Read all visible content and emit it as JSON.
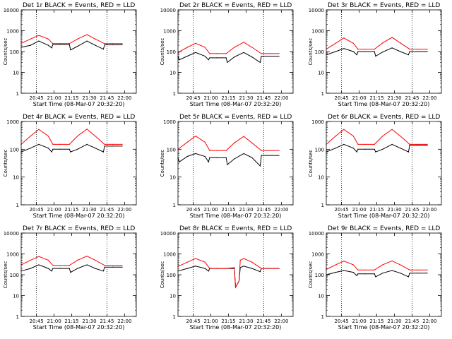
{
  "figure": {
    "colors": {
      "events": "#000000",
      "lld": "#ff0000",
      "axis": "#000000"
    }
  },
  "chart_data": [
    {
      "type": "line",
      "title": "Det 1r BLACK = Events, RED = LLD",
      "xlabel": "Start Time (08-Mar-07 20:32:20)",
      "ylabel": "Counts/sec",
      "yscale": "log",
      "ylim": [
        1,
        10000
      ],
      "x_ticks": [
        "20:45",
        "21:00",
        "21:15",
        "21:30",
        "21:45",
        "22:00"
      ],
      "y_ticks": [
        "1",
        "10",
        "100",
        "1000",
        "10000"
      ],
      "vlines": [
        "20:45",
        "21:45"
      ],
      "series": [
        {
          "name": "Events",
          "color": "#000000",
          "x": [
            "20:32",
            "20:40",
            "20:47",
            "20:55",
            "20:58",
            "20:59",
            "21:05",
            "21:13",
            "21:14",
            "21:20",
            "21:28",
            "21:35",
            "21:42",
            "21:43",
            "21:50",
            "21:58"
          ],
          "values": [
            160,
            200,
            320,
            200,
            150,
            220,
            220,
            220,
            120,
            180,
            320,
            200,
            130,
            210,
            210,
            210
          ]
        },
        {
          "name": "LLD",
          "color": "#ff0000",
          "x": [
            "20:32",
            "20:40",
            "20:47",
            "20:55",
            "20:59",
            "21:05",
            "21:13",
            "21:20",
            "21:28",
            "21:35",
            "21:43",
            "21:50",
            "21:58"
          ],
          "values": [
            250,
            400,
            600,
            400,
            240,
            240,
            240,
            400,
            650,
            400,
            240,
            240,
            240
          ]
        }
      ]
    },
    {
      "type": "line",
      "title": "Det 2r BLACK = Events, RED = LLD",
      "xlabel": "Start Time (08-Mar-07 20:32:20)",
      "ylabel": "Counts/sec",
      "yscale": "log",
      "ylim": [
        1,
        10000
      ],
      "x_ticks": [
        "20:45",
        "21:00",
        "21:15",
        "21:30",
        "21:45",
        "22:00"
      ],
      "y_ticks": [
        "1",
        "10",
        "100",
        "1000",
        "10000"
      ],
      "vlines": [
        "20:45",
        "21:45"
      ],
      "series": [
        {
          "name": "Events",
          "color": "#000000",
          "x": [
            "20:32",
            "20:33",
            "20:40",
            "20:47",
            "20:55",
            "20:58",
            "20:59",
            "21:05",
            "21:13",
            "21:14",
            "21:20",
            "21:28",
            "21:35",
            "21:42",
            "21:43",
            "21:50",
            "21:58"
          ],
          "values": [
            60,
            40,
            60,
            90,
            60,
            40,
            50,
            50,
            50,
            30,
            55,
            90,
            55,
            30,
            60,
            60,
            60
          ]
        },
        {
          "name": "LLD",
          "color": "#ff0000",
          "x": [
            "20:32",
            "20:40",
            "20:47",
            "20:55",
            "20:59",
            "21:05",
            "21:13",
            "21:20",
            "21:28",
            "21:35",
            "21:43",
            "21:50",
            "21:58"
          ],
          "values": [
            90,
            160,
            250,
            160,
            80,
            80,
            80,
            160,
            280,
            160,
            80,
            80,
            80
          ]
        }
      ]
    },
    {
      "type": "line",
      "title": "Det 3r BLACK = Events, RED = LLD",
      "xlabel": "Start Time (08-Mar-07 20:32:20)",
      "ylabel": "Counts/sec",
      "yscale": "log",
      "ylim": [
        1,
        10000
      ],
      "x_ticks": [
        "20:45",
        "21:00",
        "21:15",
        "21:30",
        "21:45",
        "22:00"
      ],
      "y_ticks": [
        "1",
        "10",
        "100",
        "1000",
        "10000"
      ],
      "vlines": [
        "20:45",
        "21:45"
      ],
      "series": [
        {
          "name": "Events",
          "color": "#000000",
          "x": [
            "20:32",
            "20:40",
            "20:47",
            "20:55",
            "20:58",
            "20:59",
            "21:05",
            "21:13",
            "21:14",
            "21:20",
            "21:28",
            "21:35",
            "21:42",
            "21:43",
            "21:50",
            "21:58"
          ],
          "values": [
            70,
            100,
            140,
            100,
            70,
            100,
            100,
            100,
            60,
            95,
            150,
            100,
            70,
            100,
            100,
            100
          ]
        },
        {
          "name": "LLD",
          "color": "#ff0000",
          "x": [
            "20:32",
            "20:40",
            "20:47",
            "20:55",
            "20:59",
            "21:05",
            "21:13",
            "21:20",
            "21:28",
            "21:35",
            "21:43",
            "21:50",
            "21:58"
          ],
          "values": [
            130,
            250,
            450,
            250,
            130,
            130,
            130,
            260,
            480,
            260,
            130,
            130,
            130
          ]
        }
      ]
    },
    {
      "type": "line",
      "title": "Det 4r BLACK = Events, RED = LLD",
      "xlabel": "Start Time (08-Mar-07 20:32:20)",
      "ylabel": "Counts/sec",
      "yscale": "log",
      "ylim": [
        1,
        1000
      ],
      "x_ticks": [
        "20:45",
        "21:00",
        "21:15",
        "21:30",
        "21:45",
        "22:00"
      ],
      "y_ticks": [
        "1",
        "10",
        "100",
        "1000"
      ],
      "vlines": [
        "20:45",
        "21:45"
      ],
      "series": [
        {
          "name": "Events",
          "color": "#000000",
          "x": [
            "20:32",
            "20:40",
            "20:47",
            "20:55",
            "20:58",
            "20:59",
            "21:05",
            "21:13",
            "21:14",
            "21:20",
            "21:28",
            "21:35",
            "21:42",
            "21:43",
            "21:50",
            "21:58"
          ],
          "values": [
            80,
            110,
            150,
            110,
            80,
            100,
            100,
            100,
            80,
            100,
            150,
            110,
            80,
            130,
            130,
            130
          ]
        },
        {
          "name": "LLD",
          "color": "#ff0000",
          "x": [
            "20:32",
            "20:40",
            "20:47",
            "20:55",
            "20:59",
            "21:05",
            "21:13",
            "21:20",
            "21:28",
            "21:35",
            "21:43",
            "21:50",
            "21:58"
          ],
          "values": [
            150,
            300,
            520,
            300,
            150,
            150,
            150,
            300,
            530,
            300,
            150,
            150,
            150
          ]
        }
      ]
    },
    {
      "type": "line",
      "title": "Det 5r BLACK = Events, RED = LLD",
      "xlabel": "Start Time (08-Mar-07 20:32:20)",
      "ylabel": "Counts/sec",
      "yscale": "log",
      "ylim": [
        1,
        1000
      ],
      "x_ticks": [
        "20:45",
        "21:00",
        "21:15",
        "21:30",
        "21:45",
        "22:00"
      ],
      "y_ticks": [
        "1",
        "10",
        "100",
        "1000"
      ],
      "vlines": [
        "20:45",
        "21:45"
      ],
      "series": [
        {
          "name": "Events",
          "color": "#000000",
          "x": [
            "20:32",
            "20:33",
            "20:40",
            "20:47",
            "20:55",
            "20:58",
            "20:59",
            "21:05",
            "21:13",
            "21:14",
            "21:20",
            "21:28",
            "21:35",
            "21:42",
            "21:43",
            "21:50",
            "21:58"
          ],
          "values": [
            50,
            35,
            55,
            70,
            55,
            35,
            50,
            50,
            50,
            28,
            45,
            70,
            50,
            25,
            60,
            60,
            60
          ]
        },
        {
          "name": "LLD",
          "color": "#ff0000",
          "x": [
            "20:32",
            "20:40",
            "20:47",
            "20:55",
            "20:59",
            "21:05",
            "21:13",
            "21:20",
            "21:28",
            "21:35",
            "21:43",
            "21:50",
            "21:58"
          ],
          "values": [
            100,
            180,
            300,
            180,
            90,
            90,
            90,
            170,
            290,
            170,
            90,
            90,
            90
          ]
        }
      ]
    },
    {
      "type": "line",
      "title": "Det 6r BLACK = Events, RED = LLD",
      "xlabel": "Start Time (08-Mar-07 20:32:20)",
      "ylabel": "Counts/sec",
      "yscale": "log",
      "ylim": [
        1,
        1000
      ],
      "x_ticks": [
        "20:45",
        "21:00",
        "21:15",
        "21:30",
        "21:45",
        "22:00"
      ],
      "y_ticks": [
        "1",
        "10",
        "100",
        "1000"
      ],
      "vlines": [
        "20:45",
        "21:45"
      ],
      "series": [
        {
          "name": "Events",
          "color": "#000000",
          "x": [
            "20:32",
            "20:40",
            "20:47",
            "20:55",
            "20:58",
            "20:59",
            "21:05",
            "21:13",
            "21:14",
            "21:20",
            "21:28",
            "21:35",
            "21:42",
            "21:43",
            "21:50",
            "21:58"
          ],
          "values": [
            80,
            110,
            150,
            110,
            80,
            100,
            100,
            100,
            80,
            100,
            150,
            110,
            80,
            140,
            140,
            140
          ]
        },
        {
          "name": "LLD",
          "color": "#ff0000",
          "x": [
            "20:32",
            "20:40",
            "20:47",
            "20:55",
            "20:59",
            "21:05",
            "21:13",
            "21:20",
            "21:28",
            "21:35",
            "21:43",
            "21:50",
            "21:58"
          ],
          "values": [
            150,
            300,
            520,
            300,
            150,
            150,
            150,
            300,
            520,
            300,
            150,
            150,
            150
          ]
        }
      ]
    },
    {
      "type": "line",
      "title": "Det 7r BLACK = Events, RED = LLD",
      "xlabel": "Start Time (08-Mar-07 20:32:20)",
      "ylabel": "Counts/sec",
      "yscale": "log",
      "ylim": [
        1,
        10000
      ],
      "x_ticks": [
        "20:45",
        "21:00",
        "21:15",
        "21:30",
        "21:45",
        "22:00"
      ],
      "y_ticks": [
        "1",
        "10",
        "100",
        "1000",
        "10000"
      ],
      "vlines": [
        "20:45",
        "21:45"
      ],
      "series": [
        {
          "name": "Events",
          "color": "#000000",
          "x": [
            "20:32",
            "20:40",
            "20:47",
            "20:55",
            "20:58",
            "20:59",
            "21:05",
            "21:13",
            "21:14",
            "21:20",
            "21:28",
            "21:35",
            "21:42",
            "21:43",
            "21:50",
            "21:58"
          ],
          "values": [
            150,
            200,
            300,
            200,
            150,
            200,
            200,
            200,
            130,
            200,
            300,
            200,
            150,
            230,
            230,
            230
          ]
        },
        {
          "name": "LLD",
          "color": "#ff0000",
          "x": [
            "20:32",
            "20:40",
            "20:47",
            "20:55",
            "20:59",
            "21:05",
            "21:13",
            "21:20",
            "21:28",
            "21:35",
            "21:43",
            "21:50",
            "21:58"
          ],
          "values": [
            300,
            500,
            750,
            500,
            280,
            280,
            280,
            500,
            780,
            500,
            280,
            280,
            280
          ]
        }
      ]
    },
    {
      "type": "line",
      "title": "Det 8r BLACK = Events, RED = LLD",
      "xlabel": "Start Time (08-Mar-07 20:32:20)",
      "ylabel": "Counts/sec",
      "yscale": "log",
      "ylim": [
        1,
        10000
      ],
      "x_ticks": [
        "20:45",
        "21:00",
        "21:15",
        "21:30",
        "21:45",
        "22:00"
      ],
      "y_ticks": [
        "1",
        "10",
        "100",
        "1000",
        "10000"
      ],
      "vlines": [
        "20:45",
        "21:45"
      ],
      "series": [
        {
          "name": "Events",
          "color": "#000000",
          "x": [
            "20:32",
            "20:40",
            "20:47",
            "20:55",
            "20:58",
            "20:59",
            "21:05",
            "21:13",
            "21:14",
            "21:20",
            "21:21",
            "21:24",
            "21:25",
            "21:28",
            "21:35",
            "21:42",
            "21:43",
            "21:50",
            "21:58"
          ],
          "values": [
            150,
            200,
            260,
            200,
            150,
            200,
            200,
            200,
            200,
            200,
            25,
            50,
            220,
            260,
            200,
            140,
            200,
            200,
            200
          ]
        },
        {
          "name": "LLD",
          "color": "#ff0000",
          "x": [
            "20:32",
            "20:40",
            "20:47",
            "20:55",
            "20:59",
            "21:05",
            "21:13",
            "21:20",
            "21:21",
            "21:24",
            "21:25",
            "21:28",
            "21:35",
            "21:43",
            "21:50",
            "21:58"
          ],
          "values": [
            250,
            400,
            600,
            400,
            200,
            200,
            200,
            220,
            25,
            50,
            500,
            600,
            400,
            200,
            200,
            200
          ]
        }
      ]
    },
    {
      "type": "line",
      "title": "Det 9r BLACK = Events, RED = LLD",
      "xlabel": "Start Time (08-Mar-07 20:32:20)",
      "ylabel": "Counts/sec",
      "yscale": "log",
      "ylim": [
        1,
        10000
      ],
      "x_ticks": [
        "20:45",
        "21:00",
        "21:15",
        "21:30",
        "21:45",
        "22:00"
      ],
      "y_ticks": [
        "1",
        "10",
        "100",
        "1000",
        "10000"
      ],
      "vlines": [
        "20:45",
        "21:45"
      ],
      "series": [
        {
          "name": "Events",
          "color": "#000000",
          "x": [
            "20:32",
            "20:40",
            "20:47",
            "20:55",
            "20:58",
            "20:59",
            "21:05",
            "21:13",
            "21:14",
            "21:20",
            "21:28",
            "21:35",
            "21:42",
            "21:43",
            "21:50",
            "21:58"
          ],
          "values": [
            100,
            130,
            160,
            130,
            90,
            110,
            110,
            110,
            80,
            120,
            160,
            120,
            80,
            120,
            120,
            120
          ]
        },
        {
          "name": "LLD",
          "color": "#ff0000",
          "x": [
            "20:32",
            "20:40",
            "20:47",
            "20:55",
            "20:59",
            "21:05",
            "21:13",
            "21:20",
            "21:28",
            "21:35",
            "21:43",
            "21:50",
            "21:58"
          ],
          "values": [
            180,
            300,
            450,
            300,
            170,
            170,
            170,
            300,
            460,
            300,
            170,
            170,
            170
          ]
        }
      ]
    }
  ]
}
